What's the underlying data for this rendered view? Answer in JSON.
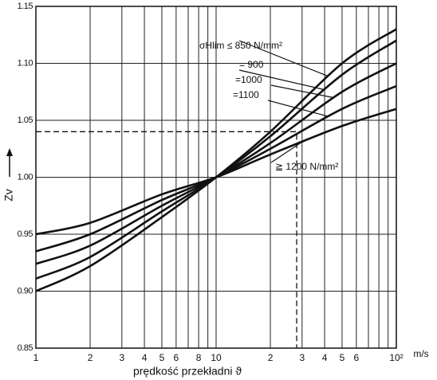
{
  "chart_data": {
    "type": "line",
    "x_label": "prędkość przekładni ϑ",
    "x_unit": "m/s",
    "y_label": "Zv",
    "log_x": true,
    "grid": true,
    "color": "#111111",
    "x": [
      1,
      2,
      5,
      10,
      20,
      50,
      100
    ],
    "series": [
      {
        "name": "σHlim ≤ 850 N/mm²",
        "color": "#111111",
        "values": [
          0.9,
          0.922,
          0.965,
          1.0,
          1.04,
          1.1,
          1.13
        ]
      },
      {
        "name": "= 900",
        "color": "#111111",
        "values": [
          0.911,
          0.93,
          0.97,
          1.0,
          1.036,
          1.09,
          1.12
        ]
      },
      {
        "name": "=1000",
        "color": "#111111",
        "values": [
          0.924,
          0.94,
          0.975,
          1.0,
          1.03,
          1.075,
          1.1
        ]
      },
      {
        "name": "=1100",
        "color": "#111111",
        "values": [
          0.935,
          0.95,
          0.98,
          1.0,
          1.025,
          1.06,
          1.08
        ]
      },
      {
        "name": "≧ 1200 N/mm²",
        "color": "#111111",
        "values": [
          0.95,
          0.96,
          0.985,
          1.0,
          1.02,
          1.045,
          1.06
        ]
      }
    ],
    "xlim": [
      1,
      100
    ],
    "ylim": [
      0.85,
      1.15
    ],
    "xticks": [
      1,
      2,
      3,
      4,
      5,
      6,
      8,
      10,
      {
        "value": 20,
        "label": "2"
      },
      {
        "value": 30,
        "label": "3"
      },
      {
        "value": 40,
        "label": "4"
      },
      {
        "value": 50,
        "label": "5"
      },
      {
        "value": 60,
        "label": "6"
      },
      {
        "value": 100,
        "label": "10²"
      }
    ],
    "xminor": [
      7,
      9,
      70,
      80,
      90
    ],
    "yticks": [
      {
        "value": 0.85,
        "label": "0.85"
      },
      {
        "value": 0.9,
        "label": "0.90"
      },
      0.95,
      {
        "value": 1.0,
        "label": "1.00"
      },
      1.05,
      {
        "value": 1.1,
        "label": "1.10"
      },
      1.15
    ],
    "dashed_line": {
      "x": 28,
      "y": 1.04
    }
  }
}
